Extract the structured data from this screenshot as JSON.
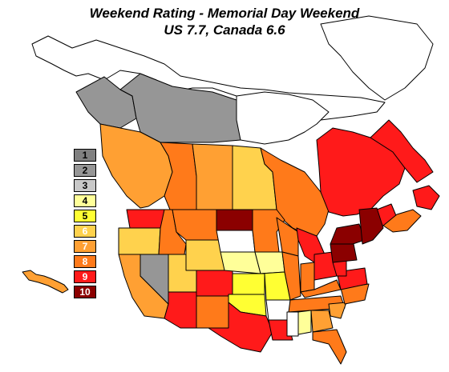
{
  "title": "Weekend Rating - Memorial Day Weekend",
  "subtitle": "US 7.7, Canada 6.6",
  "legend": [
    {
      "label": "1",
      "color": "#808080",
      "text_color": "#000000"
    },
    {
      "label": "2",
      "color": "#969696",
      "text_color": "#000000"
    },
    {
      "label": "3",
      "color": "#c8c8c8",
      "text_color": "#000000"
    },
    {
      "label": "4",
      "color": "#ffff99",
      "text_color": "#000000"
    },
    {
      "label": "5",
      "color": "#ffff33",
      "text_color": "#000000"
    },
    {
      "label": "6",
      "color": "#ffd24d",
      "text_color": "#ffffff"
    },
    {
      "label": "7",
      "color": "#ffa033",
      "text_color": "#ffffff"
    },
    {
      "label": "8",
      "color": "#ff7a1a",
      "text_color": "#ffffff"
    },
    {
      "label": "9",
      "color": "#ff1a1a",
      "text_color": "#ffffff"
    },
    {
      "label": "10",
      "color": "#8b0000",
      "text_color": "#ffffff"
    }
  ],
  "regions": [
    {
      "name": "arctic-islands",
      "rating": null
    },
    {
      "name": "greenland",
      "rating": null
    },
    {
      "name": "yukon",
      "rating": 2
    },
    {
      "name": "northwest-territories",
      "rating": 2
    },
    {
      "name": "nunavut",
      "rating": null
    },
    {
      "name": "british-columbia",
      "rating": 7
    },
    {
      "name": "alberta",
      "rating": 8
    },
    {
      "name": "saskatchewan",
      "rating": 7
    },
    {
      "name": "manitoba",
      "rating": 6
    },
    {
      "name": "ontario",
      "rating": 8
    },
    {
      "name": "quebec",
      "rating": 9
    },
    {
      "name": "labrador",
      "rating": 9
    },
    {
      "name": "newfoundland",
      "rating": 9
    },
    {
      "name": "new-brunswick",
      "rating": 9
    },
    {
      "name": "nova-scotia",
      "rating": 8
    },
    {
      "name": "washington",
      "rating": 9
    },
    {
      "name": "oregon",
      "rating": 6
    },
    {
      "name": "california",
      "rating": 7
    },
    {
      "name": "nevada",
      "rating": 2
    },
    {
      "name": "idaho",
      "rating": 8
    },
    {
      "name": "montana",
      "rating": 8
    },
    {
      "name": "wyoming",
      "rating": 6
    },
    {
      "name": "utah",
      "rating": 6
    },
    {
      "name": "arizona",
      "rating": 9
    },
    {
      "name": "colorado",
      "rating": 9
    },
    {
      "name": "new-mexico",
      "rating": 8
    },
    {
      "name": "north-dakota",
      "rating": 10
    },
    {
      "name": "south-dakota",
      "rating": null
    },
    {
      "name": "nebraska",
      "rating": 4
    },
    {
      "name": "kansas",
      "rating": 5
    },
    {
      "name": "oklahoma",
      "rating": 5
    },
    {
      "name": "texas",
      "rating": 9
    },
    {
      "name": "minnesota",
      "rating": 8
    },
    {
      "name": "iowa",
      "rating": 4
    },
    {
      "name": "missouri",
      "rating": 5
    },
    {
      "name": "arkansas",
      "rating": null
    },
    {
      "name": "louisiana",
      "rating": 9
    },
    {
      "name": "wisconsin",
      "rating": 8
    },
    {
      "name": "illinois",
      "rating": 8
    },
    {
      "name": "michigan",
      "rating": 9
    },
    {
      "name": "indiana",
      "rating": 8
    },
    {
      "name": "ohio",
      "rating": 9
    },
    {
      "name": "kentucky",
      "rating": 8
    },
    {
      "name": "tennessee",
      "rating": 8
    },
    {
      "name": "mississippi",
      "rating": null
    },
    {
      "name": "alabama",
      "rating": 4
    },
    {
      "name": "georgia",
      "rating": 7
    },
    {
      "name": "florida",
      "rating": 8
    },
    {
      "name": "south-carolina",
      "rating": 7
    },
    {
      "name": "north-carolina",
      "rating": 8
    },
    {
      "name": "virginia",
      "rating": 9
    },
    {
      "name": "west-virginia",
      "rating": 9
    },
    {
      "name": "pennsylvania",
      "rating": 10
    },
    {
      "name": "new-york",
      "rating": 10
    },
    {
      "name": "new-england",
      "rating": 10
    },
    {
      "name": "hawaii",
      "rating": 7
    }
  ]
}
